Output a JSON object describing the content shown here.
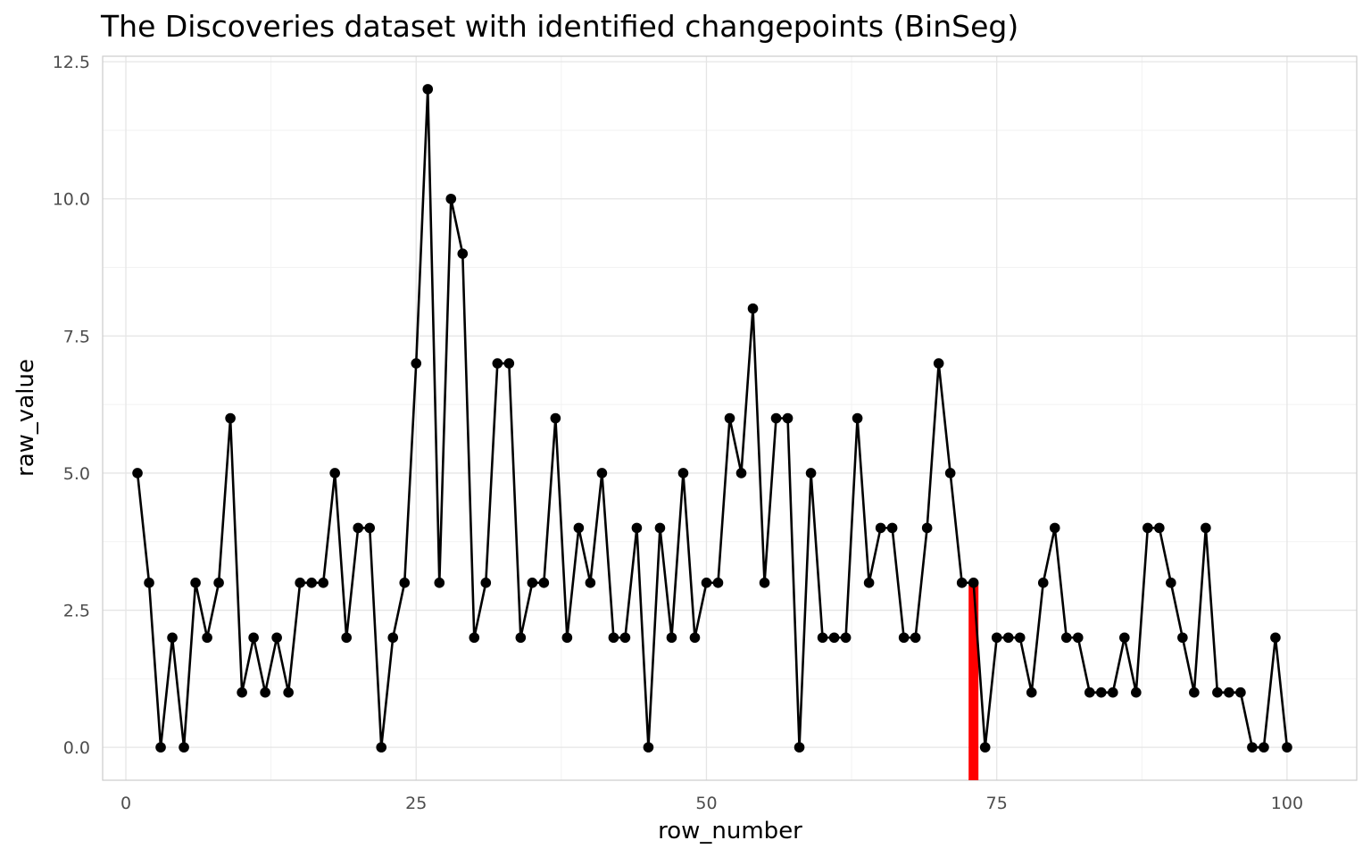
{
  "chart_data": {
    "type": "line",
    "title": "The Discoveries dataset with identified changepoints (BinSeg)",
    "xlabel": "row_number",
    "ylabel": "raw_value",
    "xlim": [
      -2,
      106
    ],
    "ylim": [
      -0.6,
      12.6
    ],
    "x_ticks": [
      {
        "value": 0,
        "label": "0"
      },
      {
        "value": 25,
        "label": "25"
      },
      {
        "value": 50,
        "label": "50"
      },
      {
        "value": 75,
        "label": "75"
      },
      {
        "value": 100,
        "label": "100"
      }
    ],
    "y_ticks": [
      {
        "value": 0,
        "label": "0.0"
      },
      {
        "value": 2.5,
        "label": "2.5"
      },
      {
        "value": 5,
        "label": "5.0"
      },
      {
        "value": 7.5,
        "label": "7.5"
      },
      {
        "value": 10,
        "label": "10.0"
      },
      {
        "value": 12.5,
        "label": "12.5"
      }
    ],
    "grid": true,
    "legend": "none",
    "series": [
      {
        "color": "#000000",
        "x": [
          1,
          2,
          3,
          4,
          5,
          6,
          7,
          8,
          9,
          10,
          11,
          12,
          13,
          14,
          15,
          16,
          17,
          18,
          19,
          20,
          21,
          22,
          23,
          24,
          25,
          26,
          27,
          28,
          29,
          30,
          31,
          32,
          33,
          34,
          35,
          36,
          37,
          38,
          39,
          40,
          41,
          42,
          43,
          44,
          45,
          46,
          47,
          48,
          49,
          50,
          51,
          52,
          53,
          54,
          55,
          56,
          57,
          58,
          59,
          60,
          61,
          62,
          63,
          64,
          65,
          66,
          67,
          68,
          69,
          70,
          71,
          72,
          73,
          74,
          75,
          76,
          77,
          78,
          79,
          80,
          81,
          82,
          83,
          84,
          85,
          86,
          87,
          88,
          89,
          90,
          91,
          92,
          93,
          94,
          95,
          96,
          97,
          98,
          99,
          100
        ],
        "values": [
          5,
          3,
          0,
          2,
          0,
          3,
          2,
          3,
          6,
          1,
          2,
          1,
          2,
          1,
          3,
          3,
          3,
          5,
          2,
          4,
          4,
          0,
          2,
          3,
          7,
          12,
          3,
          10,
          9,
          2,
          3,
          7,
          7,
          2,
          3,
          3,
          6,
          2,
          4,
          3,
          5,
          2,
          2,
          4,
          0,
          4,
          2,
          5,
          2,
          3,
          3,
          6,
          5,
          8,
          3,
          6,
          6,
          0,
          5,
          2,
          2,
          2,
          6,
          3,
          4,
          4,
          2,
          2,
          4,
          7,
          5,
          3,
          3,
          0,
          2,
          2,
          2,
          1,
          3,
          4,
          2,
          2,
          1,
          1,
          1,
          2,
          1,
          4,
          4,
          3,
          2,
          1,
          4,
          1,
          1,
          1,
          0,
          0,
          2,
          0
        ]
      }
    ],
    "changepoints": [
      {
        "x": 73,
        "y_from": -0.6,
        "y_to": 3,
        "color": "#ff0000"
      }
    ],
    "colors": {
      "line": "#000000",
      "point": "#000000",
      "changepoint": "#ff0000",
      "grid_major": "#e5e5e5",
      "grid_minor": "#f2f2f2",
      "panel_border": "#cccccc",
      "tick_label": "#4d4d4d"
    }
  }
}
